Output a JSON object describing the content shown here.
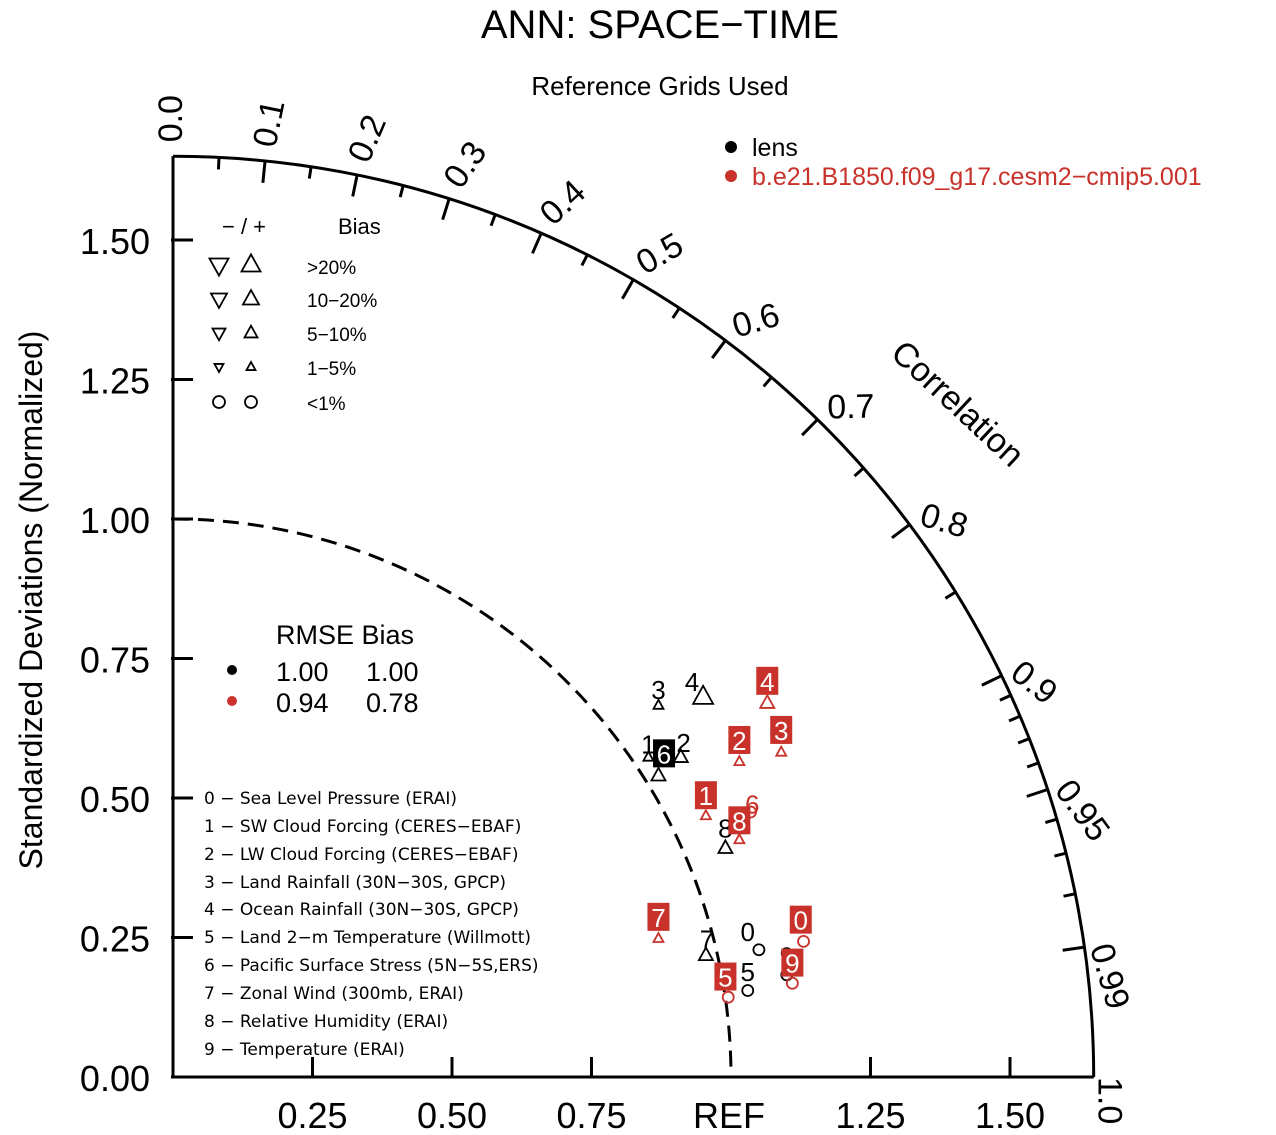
{
  "chart_data": {
    "type": "taylor-diagram",
    "title": "ANN: SPACE−TIME",
    "subtitle": "Reference Grids Used",
    "ylabel": "Standardized Deviations (Normalized)",
    "correlation_label": "Correlation",
    "ref_label": "REF",
    "max_std": 1.65,
    "y_ticks": [
      {
        "value": 0.0,
        "label": "0.00"
      },
      {
        "value": 0.25,
        "label": "0.25"
      },
      {
        "value": 0.5,
        "label": "0.50"
      },
      {
        "value": 0.75,
        "label": "0.75"
      },
      {
        "value": 1.0,
        "label": "1.00"
      },
      {
        "value": 1.25,
        "label": "1.25"
      },
      {
        "value": 1.5,
        "label": "1.50"
      }
    ],
    "x_ticks": [
      {
        "value": 0.25,
        "label": "0.25"
      },
      {
        "value": 0.5,
        "label": "0.50"
      },
      {
        "value": 0.75,
        "label": "0.75"
      },
      {
        "value": 1.25,
        "label": "1.25"
      },
      {
        "value": 1.5,
        "label": "1.50"
      }
    ],
    "correlation_labels": [
      {
        "value": 0.0,
        "label": "0.0"
      },
      {
        "value": 0.1,
        "label": "0.1"
      },
      {
        "value": 0.2,
        "label": "0.2"
      },
      {
        "value": 0.3,
        "label": "0.3"
      },
      {
        "value": 0.4,
        "label": "0.4"
      },
      {
        "value": 0.5,
        "label": "0.5"
      },
      {
        "value": 0.6,
        "label": "0.6"
      },
      {
        "value": 0.7,
        "label": "0.7"
      },
      {
        "value": 0.8,
        "label": "0.8"
      },
      {
        "value": 0.9,
        "label": "0.9"
      },
      {
        "value": 0.95,
        "label": "0.95"
      },
      {
        "value": 0.99,
        "label": "0.99"
      },
      {
        "value": 1.0,
        "label": "1.0"
      }
    ],
    "correlation_minor_ticks": [
      0.05,
      0.15,
      0.25,
      0.35,
      0.45,
      0.55,
      0.65,
      0.75,
      0.85,
      0.91,
      0.92,
      0.93,
      0.94,
      0.96,
      0.97,
      0.98
    ],
    "series": [
      {
        "name": "lens",
        "color": "#000000",
        "points": [
          {
            "id": "0",
            "x": 1.05,
            "y": 0.228,
            "marker": "circle",
            "direction": "up"
          },
          {
            "id": "1",
            "x": 0.852,
            "y": 0.573,
            "marker": "triangle-small",
            "direction": "up"
          },
          {
            "id": "2",
            "x": 0.91,
            "y": 0.573,
            "marker": "triangle",
            "direction": "up"
          },
          {
            "id": "3",
            "x": 0.87,
            "y": 0.666,
            "marker": "triangle-small",
            "direction": "up"
          },
          {
            "id": "4",
            "x": 0.95,
            "y": 0.681,
            "marker": "triangle-large",
            "direction": "up"
          },
          {
            "id": "5",
            "x": 1.03,
            "y": 0.155,
            "marker": "circle",
            "direction": "up"
          },
          {
            "id": "6",
            "x": 0.87,
            "y": 0.54,
            "marker": "triangle",
            "direction": "up"
          },
          {
            "id": "7",
            "x": 0.955,
            "y": 0.218,
            "marker": "triangle",
            "direction": "up"
          },
          {
            "id": "8",
            "x": 0.99,
            "y": 0.41,
            "marker": "triangle",
            "direction": "up"
          },
          {
            "id": "9",
            "x": 1.1,
            "y": 0.183,
            "marker": "circle",
            "direction": "up"
          }
        ]
      },
      {
        "name": "b.e21.B1850.f09_g17.cesm2−cmip5.001",
        "color": "#c8322a",
        "points": [
          {
            "id": "0",
            "x": 1.13,
            "y": 0.243,
            "marker": "circle",
            "direction": "up"
          },
          {
            "id": "1",
            "x": 0.955,
            "y": 0.468,
            "marker": "triangle-small",
            "direction": "up"
          },
          {
            "id": "2",
            "x": 1.015,
            "y": 0.565,
            "marker": "triangle-small",
            "direction": "up"
          },
          {
            "id": "3",
            "x": 1.09,
            "y": 0.582,
            "marker": "triangle-small",
            "direction": "up"
          },
          {
            "id": "4",
            "x": 1.065,
            "y": 0.67,
            "marker": "triangle",
            "direction": "up"
          },
          {
            "id": "5",
            "x": 0.995,
            "y": 0.143,
            "marker": "circle",
            "direction": "up"
          },
          {
            "id": "6",
            "x": 1.035,
            "y": 0.475,
            "marker": "circle",
            "direction": "up"
          },
          {
            "id": "7",
            "x": 0.87,
            "y": 0.248,
            "marker": "triangle-small",
            "direction": "up"
          },
          {
            "id": "8",
            "x": 1.015,
            "y": 0.425,
            "marker": "triangle-small",
            "direction": "up"
          },
          {
            "id": "9",
            "x": 1.11,
            "y": 0.168,
            "marker": "circle",
            "direction": "up"
          }
        ]
      }
    ],
    "point_labels": [
      {
        "series": 0,
        "text": "0",
        "x": 1.03,
        "y": 0.262,
        "boxed": false
      },
      {
        "series": 0,
        "text": "1",
        "x": 0.852,
        "y": 0.598,
        "boxed": false
      },
      {
        "series": 0,
        "text": "2",
        "x": 0.915,
        "y": 0.6,
        "boxed": false
      },
      {
        "series": 0,
        "text": "3",
        "x": 0.87,
        "y": 0.695,
        "boxed": false
      },
      {
        "series": 0,
        "text": "4",
        "x": 0.93,
        "y": 0.71,
        "boxed": false
      },
      {
        "series": 0,
        "text": "5",
        "x": 1.03,
        "y": 0.19,
        "boxed": false
      },
      {
        "series": 0,
        "text": "6",
        "x": 0.88,
        "y": 0.58,
        "boxed": true
      },
      {
        "series": 0,
        "text": "7",
        "x": 0.957,
        "y": 0.248,
        "boxed": false
      },
      {
        "series": 0,
        "text": "8",
        "x": 0.99,
        "y": 0.447,
        "boxed": false
      },
      {
        "series": 0,
        "text": "9",
        "x": 1.1,
        "y": 0.218,
        "boxed": false
      },
      {
        "series": 1,
        "text": "0",
        "x": 1.125,
        "y": 0.282,
        "boxed": true
      },
      {
        "series": 1,
        "text": "1",
        "x": 0.955,
        "y": 0.505,
        "boxed": true
      },
      {
        "series": 1,
        "text": "2",
        "x": 1.015,
        "y": 0.604,
        "boxed": true
      },
      {
        "series": 1,
        "text": "3",
        "x": 1.09,
        "y": 0.622,
        "boxed": true
      },
      {
        "series": 1,
        "text": "4",
        "x": 1.065,
        "y": 0.71,
        "boxed": true
      },
      {
        "series": 1,
        "text": "5",
        "x": 0.99,
        "y": 0.18,
        "boxed": true
      },
      {
        "series": 1,
        "text": "6",
        "x": 1.038,
        "y": 0.49,
        "boxed": false
      },
      {
        "series": 1,
        "text": "7",
        "x": 0.87,
        "y": 0.287,
        "boxed": true
      },
      {
        "series": 1,
        "text": "8",
        "x": 1.015,
        "y": 0.46,
        "boxed": true
      },
      {
        "series": 1,
        "text": "9",
        "x": 1.11,
        "y": 0.205,
        "boxed": true
      }
    ],
    "variables": [
      "0 − Sea Level Pressure (ERAI)",
      "1 − SW Cloud Forcing (CERES−EBAF)",
      "2 − LW Cloud Forcing (CERES−EBAF)",
      "3 − Land Rainfall (30N−30S, GPCP)",
      "4 − Ocean Rainfall (30N−30S, GPCP)",
      "5 − Land 2−m Temperature (Willmott)",
      "6 − Pacific Surface Stress (5N−5S,ERS)",
      "7 − Zonal Wind (300mb, ERAI)",
      "8 − Relative Humidity (ERAI)",
      "9 − Temperature (ERAI)"
    ],
    "bias_legend": {
      "header_signs": "− / +",
      "header_bias": "Bias",
      "rows": [
        {
          "label": ">20%",
          "size": "xlarge"
        },
        {
          "label": "10−20%",
          "size": "large"
        },
        {
          "label": "5−10%",
          "size": "medium"
        },
        {
          "label": "1−5%",
          "size": "small"
        },
        {
          "label": "<1%",
          "size": "circle"
        }
      ]
    },
    "rmse_legend": {
      "header": "RMSE Bias",
      "rows": [
        {
          "color": "#000000",
          "rmse": "1.00",
          "bias": "1.00"
        },
        {
          "color": "#c8322a",
          "rmse": "0.94",
          "bias": "0.78"
        }
      ]
    }
  }
}
